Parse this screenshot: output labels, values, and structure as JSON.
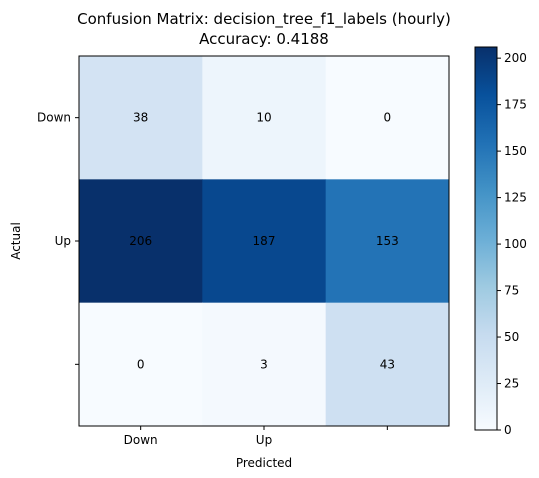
{
  "chart_data": {
    "type": "heatmap",
    "title": "Confusion Matrix: decision_tree_f1_labels (hourly)",
    "subtitle": "Accuracy: 0.4188",
    "xlabel": "Predicted",
    "ylabel": "Actual",
    "x_tick_labels": [
      "Down",
      "Up",
      ""
    ],
    "y_tick_labels": [
      "Down",
      "Up",
      ""
    ],
    "matrix": [
      [
        38,
        10,
        0
      ],
      [
        206,
        187,
        153
      ],
      [
        0,
        3,
        43
      ]
    ],
    "colormap": "Blues",
    "colorbar": {
      "min": 0,
      "max": 206,
      "ticks": [
        0,
        25,
        50,
        75,
        100,
        125,
        150,
        175,
        200
      ]
    },
    "text_colors": {
      "default": "#000000"
    }
  }
}
